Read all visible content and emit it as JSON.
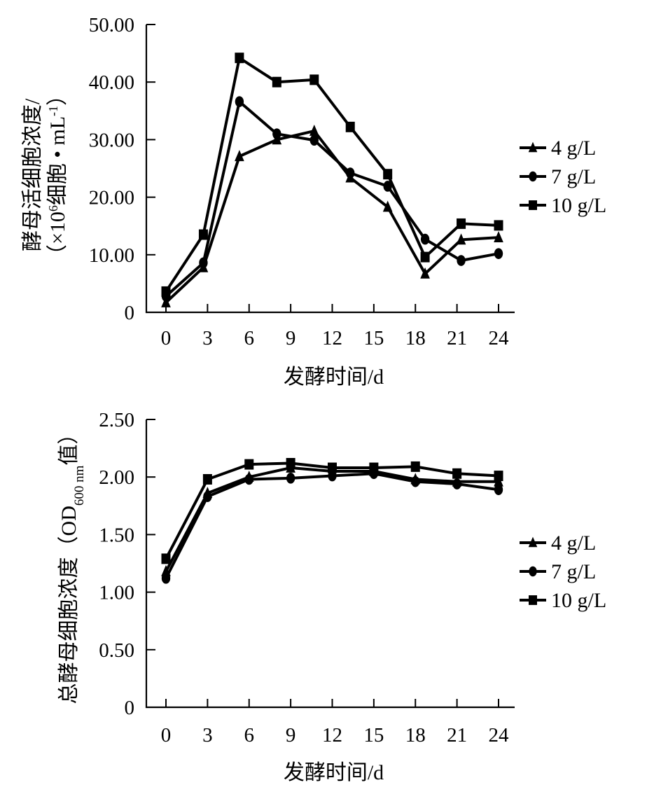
{
  "chart_data": [
    {
      "type": "line",
      "title": "",
      "xlabel": "发酵时间/d",
      "ylabel_line1": "酵母活细胞浓度/",
      "ylabel_line2_prefix": "（×10",
      "ylabel_line2_sup": "6",
      "ylabel_line2_mid": "细胞 • mL",
      "ylabel_line2_sup2": "-1",
      "ylabel_line2_suffix": "）",
      "xlim": [
        0,
        24
      ],
      "ylim": [
        0,
        50
      ],
      "x_ticks": [
        "0",
        "3",
        "6",
        "9",
        "12",
        "15",
        "18",
        "21",
        "24"
      ],
      "x_tick_values": [
        0,
        3,
        6,
        9,
        12,
        15,
        18,
        21,
        24
      ],
      "y_ticks": [
        "0",
        "10.00",
        "20.00",
        "30.00",
        "40.00",
        "50.00"
      ],
      "y_tick_values": [
        0,
        10,
        20,
        30,
        40,
        50
      ],
      "grid": false,
      "legend_position": "right",
      "x": [
        0,
        2.7,
        5.3,
        8,
        10.7,
        13.3,
        16,
        18.7,
        21.3,
        24
      ],
      "series": [
        {
          "name": "4 g/L",
          "marker": "triangle",
          "values": [
            1.7,
            7.8,
            27.1,
            30.0,
            31.5,
            23.4,
            18.3,
            6.7,
            12.6,
            13.0
          ]
        },
        {
          "name": "7 g/L",
          "marker": "circle",
          "values": [
            2.8,
            8.6,
            36.6,
            31.0,
            29.9,
            24.2,
            21.9,
            12.7,
            9.0,
            10.2
          ]
        },
        {
          "name": "10 g/L",
          "marker": "square",
          "values": [
            3.6,
            13.5,
            44.2,
            40.0,
            40.4,
            32.2,
            24.0,
            9.6,
            15.4,
            15.1
          ]
        }
      ]
    },
    {
      "type": "line",
      "title": "",
      "xlabel": "发酵时间/d",
      "ylabel_prefix": "总酵母细胞浓度（OD",
      "ylabel_sub": "600 nm",
      "ylabel_suffix": "值）",
      "xlim": [
        0,
        24
      ],
      "ylim": [
        0,
        2.5
      ],
      "x_ticks": [
        "0",
        "3",
        "6",
        "9",
        "12",
        "15",
        "18",
        "21",
        "24"
      ],
      "x_tick_values": [
        0,
        3,
        6,
        9,
        12,
        15,
        18,
        21,
        24
      ],
      "y_ticks": [
        "0",
        "0.50",
        "1.00",
        "1.50",
        "2.00",
        "2.50"
      ],
      "y_tick_values": [
        0,
        0.5,
        1.0,
        1.5,
        2.0,
        2.5
      ],
      "grid": false,
      "legend_position": "right",
      "x": [
        0,
        3,
        6,
        9,
        12,
        15,
        18,
        21,
        24
      ],
      "series": [
        {
          "name": "4 g/L",
          "marker": "triangle",
          "values": [
            1.18,
            1.86,
            2.0,
            2.08,
            2.05,
            2.05,
            1.98,
            1.96,
            1.96
          ]
        },
        {
          "name": "7 g/L",
          "marker": "circle",
          "values": [
            1.12,
            1.83,
            1.98,
            1.99,
            2.01,
            2.03,
            1.96,
            1.94,
            1.89
          ]
        },
        {
          "name": "10 g/L",
          "marker": "square",
          "values": [
            1.29,
            1.98,
            2.11,
            2.12,
            2.08,
            2.08,
            2.09,
            2.03,
            2.01
          ]
        }
      ]
    }
  ],
  "colors": {
    "ink": "#000000",
    "background": "#ffffff"
  }
}
